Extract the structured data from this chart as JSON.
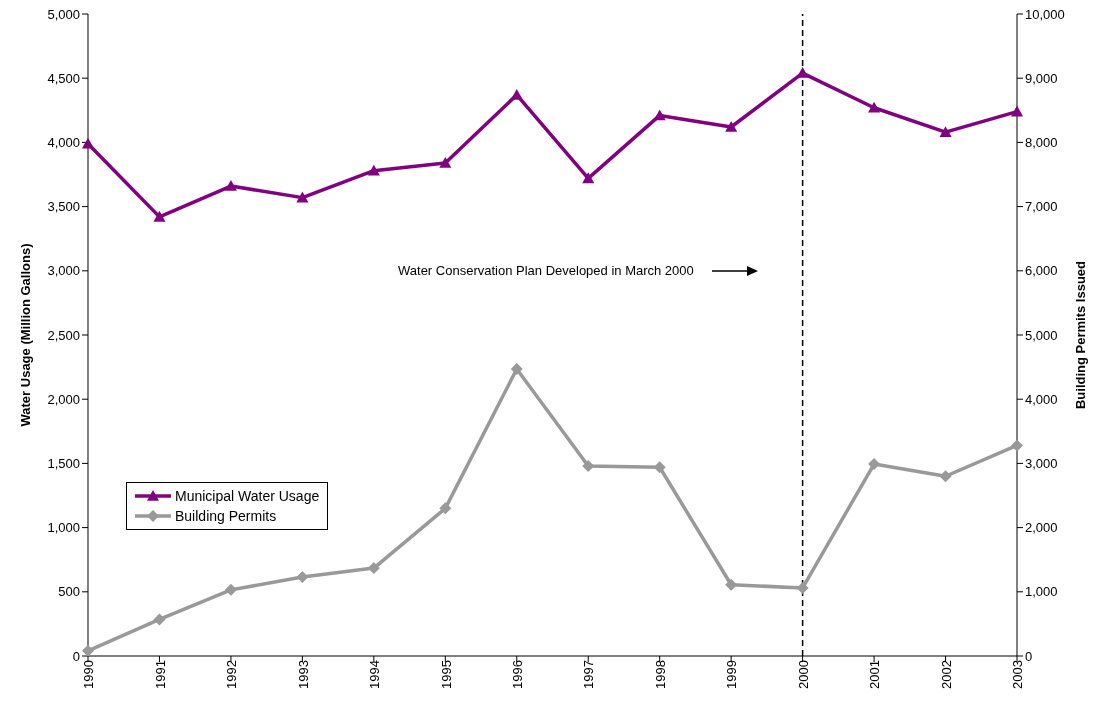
{
  "chart_data": {
    "type": "line",
    "categories": [
      "1990",
      "1991",
      "1992",
      "1993",
      "1994",
      "1995",
      "1996",
      "1997",
      "1998",
      "1999",
      "2000",
      "2001",
      "2002",
      "2003"
    ],
    "ylabel": "Water Usage (Million Gallons)",
    "y2label": "Building Permits Issued",
    "series": [
      {
        "name": "Municipal Water Usage",
        "color": "#800080",
        "marker": "triangle",
        "values": [
          3990,
          3420,
          3660,
          3570,
          3780,
          3840,
          4370,
          3720,
          4210,
          4120,
          4540,
          4270,
          4080,
          4240
        ]
      },
      {
        "name": "Building Permits",
        "color": "#999999",
        "marker": "diamond",
        "axis": "y2",
        "values": [
          80,
          570,
          1030,
          1230,
          1370,
          2300,
          4470,
          2960,
          2940,
          1110,
          1060,
          2990,
          2800,
          3280
        ]
      }
    ],
    "ylim": [
      0,
      5000
    ],
    "yticks": [
      0,
      500,
      {
        "value": 1000,
        "label": "1,000"
      },
      {
        "value": 1500,
        "label": "1,500"
      },
      {
        "value": 2000,
        "label": "2,000"
      },
      {
        "value": 2500,
        "label": "2,500"
      },
      {
        "value": 3000,
        "label": "3,000"
      },
      {
        "value": 3500,
        "label": "3,500"
      },
      {
        "value": 4000,
        "label": "4,000"
      },
      {
        "value": 4500,
        "label": "4,500"
      },
      {
        "value": 5000,
        "label": "5,000"
      }
    ],
    "y2lim": [
      0,
      10000
    ],
    "y2ticks": [
      0,
      {
        "value": 1000,
        "label": "1,000"
      },
      {
        "value": 2000,
        "label": "2,000"
      },
      {
        "value": 3000,
        "label": "3,000"
      },
      {
        "value": 4000,
        "label": "4,000"
      },
      {
        "value": 5000,
        "label": "5,000"
      },
      {
        "value": 6000,
        "label": "6,000"
      },
      {
        "value": 7000,
        "label": "7,000"
      },
      {
        "value": 8000,
        "label": "8,000"
      },
      {
        "value": 9000,
        "label": "9,000"
      },
      {
        "value": 10000,
        "label": "10,000"
      }
    ],
    "ref_lines": [
      {
        "axis": "x",
        "value": "2000",
        "line_style": "dashed",
        "color": "#000000"
      }
    ],
    "annotations": [
      "Water Conservation Plan Developed in March 2000"
    ],
    "grid": false,
    "legend": "left",
    "line_style": "solid"
  }
}
